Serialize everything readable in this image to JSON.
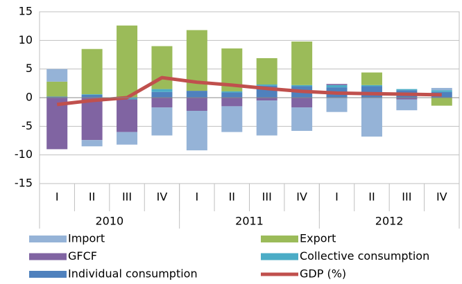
{
  "chart_data": {
    "type": "bar",
    "stacked": true,
    "categories": [
      "I",
      "II",
      "III",
      "IV",
      "I",
      "II",
      "III",
      "IV",
      "I",
      "II",
      "III",
      "IV"
    ],
    "groups": [
      {
        "label": "2010",
        "size": 4
      },
      {
        "label": "2011",
        "size": 4
      },
      {
        "label": "2012",
        "size": 4
      }
    ],
    "series": [
      {
        "name": "Individual consumption",
        "color": "#4f81bd",
        "values": [
          0.2,
          0.5,
          0.1,
          1.0,
          1.2,
          0.9,
          2.1,
          2.0,
          1.8,
          2.0,
          1.3,
          1.0
        ]
      },
      {
        "name": "Collective consumption",
        "color": "#4bacc6",
        "values": [
          0,
          0.1,
          -0.3,
          0.5,
          0,
          0.2,
          0.2,
          0.2,
          0.4,
          0.2,
          0.2,
          0.3
        ]
      },
      {
        "name": "GFCF",
        "color": "#8064a2",
        "values": [
          -9.0,
          -7.4,
          -5.7,
          -1.7,
          -2.3,
          -1.5,
          -0.5,
          -1.7,
          0.2,
          0,
          -0.3,
          0
        ]
      },
      {
        "name": "Export",
        "color": "#9bbb59",
        "values": [
          2.6,
          7.9,
          12.5,
          7.5,
          10.6,
          7.5,
          4.6,
          7.6,
          0,
          2.2,
          0,
          -1.4
        ]
      },
      {
        "name": "Import",
        "color": "#95b3d7",
        "values": [
          2.2,
          -1.1,
          -2.2,
          -4.9,
          -6.9,
          -4.5,
          -6.1,
          -4.1,
          -2.5,
          -6.8,
          -1.9,
          0.4
        ]
      },
      {
        "name": "GDP (%)",
        "color": "#c0504d",
        "type": "line",
        "values": [
          -1.2,
          -0.5,
          0,
          3.5,
          2.7,
          2.2,
          1.6,
          1.1,
          0.8,
          0.7,
          0.6,
          0.5
        ]
      }
    ],
    "legend_order": [
      4,
      3,
      2,
      1,
      0,
      5
    ],
    "ylim": [
      -15,
      15
    ],
    "yticks": [
      -15,
      -10,
      -5,
      0,
      5,
      10,
      15
    ],
    "grid": true
  }
}
